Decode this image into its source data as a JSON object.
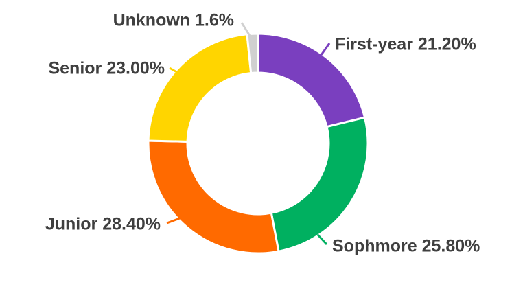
{
  "chart_data": {
    "type": "pie",
    "donut": true,
    "title": "",
    "legend": "none",
    "slices": [
      {
        "name": "First-year",
        "value": 21.2,
        "label": "First-year 21.20%",
        "color": "#7a3fbf"
      },
      {
        "name": "Sophmore",
        "value": 25.8,
        "label": "Sophmore 25.80%",
        "color": "#00b060"
      },
      {
        "name": "Junior",
        "value": 28.4,
        "label": "Junior 28.40%",
        "color": "#ff6a00"
      },
      {
        "name": "Senior",
        "value": 23.0,
        "label": "Senior 23.00%",
        "color": "#ffd500"
      },
      {
        "name": "Unknown",
        "value": 1.6,
        "label": "Unknown 1.6%",
        "color": "#d0d0d0"
      }
    ]
  }
}
